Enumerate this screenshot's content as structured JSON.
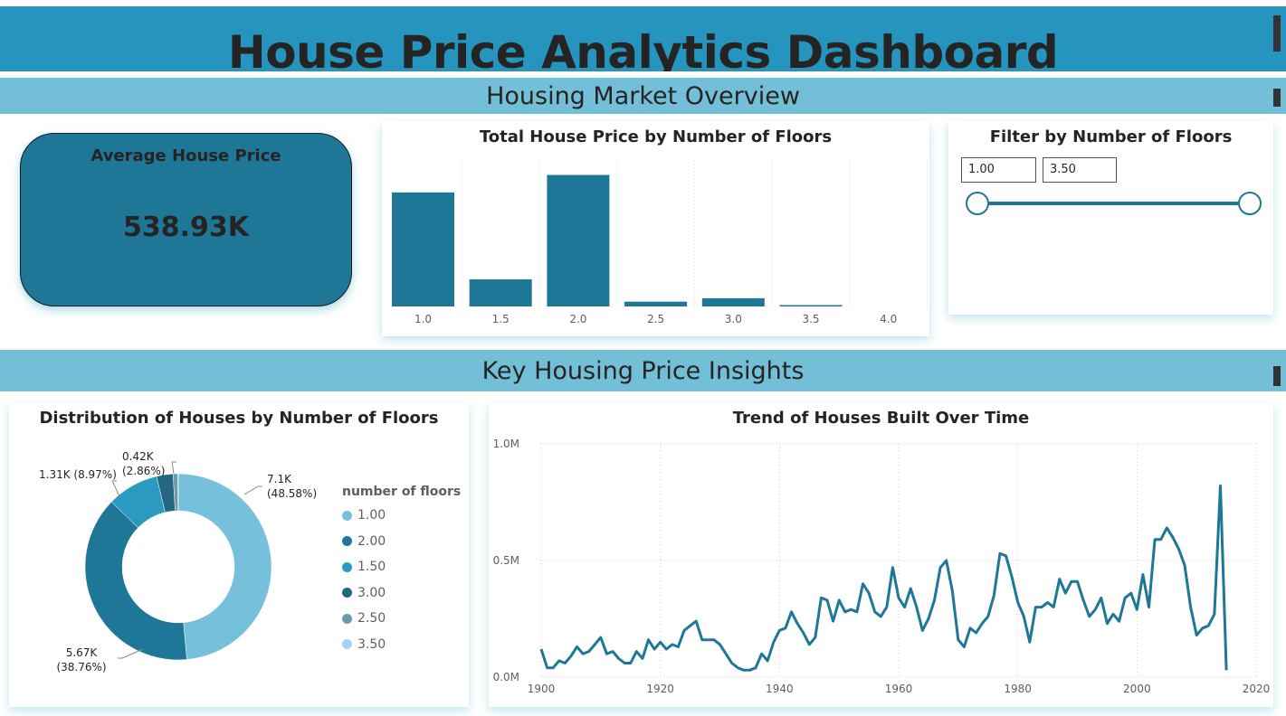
{
  "header": {
    "title": "House Price Analytics Dashboard"
  },
  "sections": {
    "overview": "Housing Market Overview",
    "insights": "Key Housing Price Insights"
  },
  "kpi": {
    "label": "Average House Price",
    "value": "538.93K"
  },
  "slicer": {
    "title": "Filter by Number of Floors",
    "min_value": "1.00",
    "max_value": "3.50",
    "range": [
      1.0,
      3.5
    ],
    "domain": [
      1.0,
      3.5
    ]
  },
  "colors": {
    "title_bar": "#2595bf",
    "section_bar": "#73bfd8",
    "bar": "#1e7797",
    "kpi_bg": "#1e7797",
    "line": "#1e7797"
  },
  "chart_data": [
    {
      "type": "bar",
      "title": "Total House Price by Number of Floors",
      "categories": [
        "1.0",
        "1.5",
        "2.0",
        "2.5",
        "3.0",
        "3.5",
        "4.0"
      ],
      "values": [
        4.97,
        1.18,
        5.73,
        0.21,
        0.36,
        0.04,
        0.0
      ],
      "ylim": [
        0,
        6.5
      ],
      "grid": "vertical-dotted"
    },
    {
      "type": "pie",
      "title": "Distribution of Houses by Number of Floors",
      "legend_title": "number of floors",
      "legend_position": "right",
      "slices": [
        {
          "name": "1.00",
          "value": 7.1,
          "label": "7.1K",
          "pct_label": "(48.58%)",
          "color": "#76c0db"
        },
        {
          "name": "2.00",
          "value": 5.67,
          "label": "5.67K",
          "pct_label": "(38.76%)",
          "color": "#1e7797"
        },
        {
          "name": "1.50",
          "value": 1.31,
          "label": "1.31K (8.97%)",
          "pct_label": "",
          "color": "#2a9ac1"
        },
        {
          "name": "3.00",
          "value": 0.42,
          "label": "0.42K",
          "pct_label": "(2.86%)",
          "color": "#236782"
        },
        {
          "name": "2.50",
          "value": 0.12,
          "label": "",
          "pct_label": "",
          "color": "#6b9aa8"
        },
        {
          "name": "3.50",
          "value": 0.01,
          "label": "",
          "pct_label": "",
          "color": "#a8d1fa"
        }
      ]
    },
    {
      "type": "line",
      "title": "Trend of Houses Built Over Time",
      "x_ticks": [
        "1900",
        "1920",
        "1940",
        "1960",
        "1980",
        "2000",
        "2020"
      ],
      "y_ticks": [
        "0.0M",
        "0.5M",
        "1.0M"
      ],
      "xlim": [
        1900,
        2020
      ],
      "ylim": [
        0,
        1.0
      ],
      "x": [
        1900,
        1901,
        1902,
        1903,
        1904,
        1905,
        1906,
        1907,
        1908,
        1909,
        1910,
        1911,
        1912,
        1913,
        1914,
        1915,
        1916,
        1917,
        1918,
        1919,
        1920,
        1921,
        1922,
        1923,
        1924,
        1925,
        1926,
        1927,
        1928,
        1929,
        1930,
        1931,
        1932,
        1933,
        1934,
        1935,
        1936,
        1937,
        1938,
        1939,
        1940,
        1941,
        1942,
        1943,
        1944,
        1945,
        1946,
        1947,
        1948,
        1949,
        1950,
        1951,
        1952,
        1953,
        1954,
        1955,
        1956,
        1957,
        1958,
        1959,
        1960,
        1961,
        1962,
        1963,
        1964,
        1965,
        1966,
        1967,
        1968,
        1969,
        1970,
        1971,
        1972,
        1973,
        1974,
        1975,
        1976,
        1977,
        1978,
        1979,
        1980,
        1981,
        1982,
        1983,
        1984,
        1985,
        1986,
        1987,
        1988,
        1989,
        1990,
        1991,
        1992,
        1993,
        1994,
        1995,
        1996,
        1997,
        1998,
        1999,
        2000,
        2001,
        2002,
        2003,
        2004,
        2005,
        2006,
        2007,
        2008,
        2009,
        2010,
        2011,
        2012,
        2013,
        2014,
        2015
      ],
      "y": [
        0.12,
        0.04,
        0.04,
        0.07,
        0.06,
        0.09,
        0.13,
        0.1,
        0.11,
        0.14,
        0.17,
        0.1,
        0.11,
        0.08,
        0.06,
        0.06,
        0.11,
        0.08,
        0.16,
        0.12,
        0.15,
        0.12,
        0.14,
        0.13,
        0.2,
        0.22,
        0.24,
        0.16,
        0.16,
        0.16,
        0.14,
        0.1,
        0.06,
        0.04,
        0.03,
        0.03,
        0.04,
        0.1,
        0.07,
        0.15,
        0.2,
        0.21,
        0.28,
        0.23,
        0.19,
        0.14,
        0.17,
        0.34,
        0.33,
        0.24,
        0.33,
        0.28,
        0.29,
        0.28,
        0.4,
        0.36,
        0.28,
        0.26,
        0.3,
        0.47,
        0.34,
        0.3,
        0.38,
        0.3,
        0.2,
        0.25,
        0.33,
        0.47,
        0.5,
        0.37,
        0.16,
        0.13,
        0.21,
        0.19,
        0.23,
        0.26,
        0.35,
        0.53,
        0.52,
        0.43,
        0.32,
        0.26,
        0.15,
        0.3,
        0.3,
        0.32,
        0.3,
        0.42,
        0.36,
        0.41,
        0.41,
        0.33,
        0.26,
        0.29,
        0.34,
        0.23,
        0.27,
        0.24,
        0.34,
        0.36,
        0.29,
        0.44,
        0.3,
        0.59,
        0.59,
        0.64,
        0.6,
        0.55,
        0.48,
        0.3,
        0.18,
        0.21,
        0.22,
        0.27,
        0.82,
        0.03
      ]
    }
  ]
}
